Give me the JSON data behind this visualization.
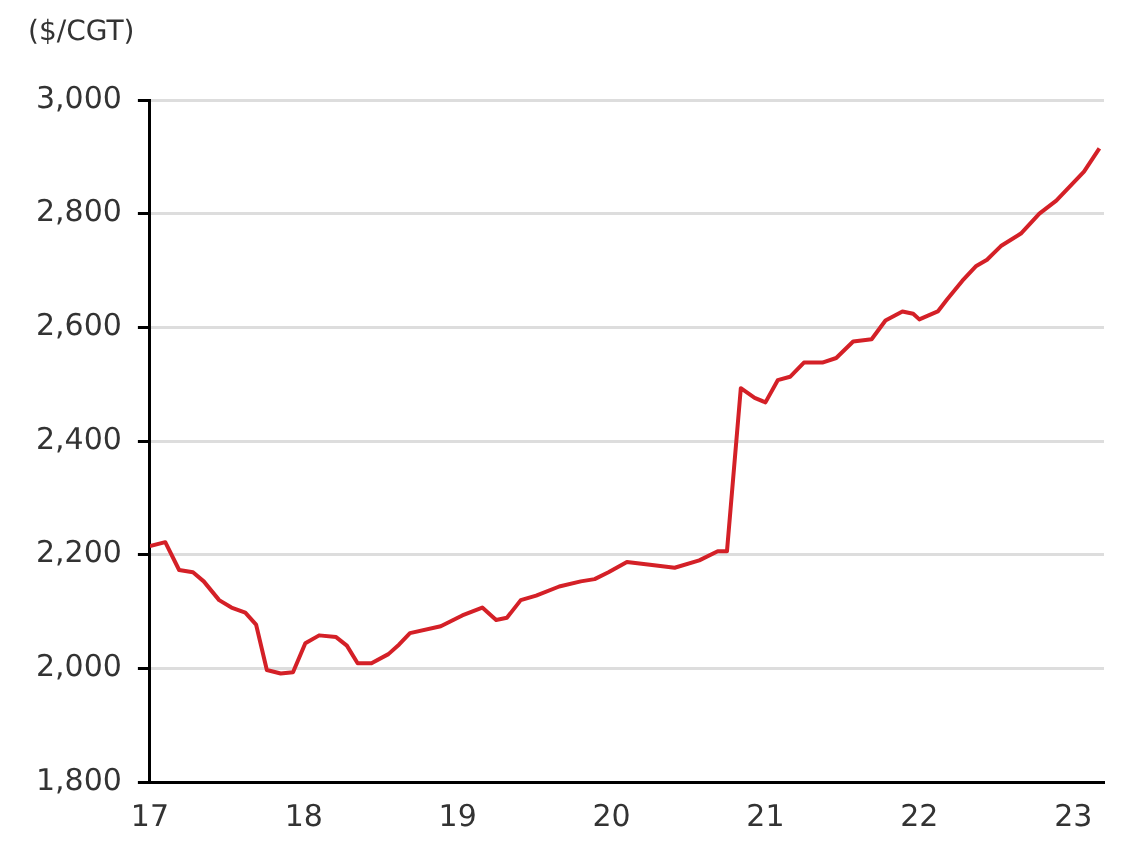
{
  "chart_data": {
    "type": "line",
    "ylabel": "($/CGT)",
    "x": [
      17.0,
      17.1,
      17.19,
      17.28,
      17.35,
      17.45,
      17.53,
      17.62,
      17.69,
      17.76,
      17.85,
      17.93,
      18.01,
      18.1,
      18.21,
      18.28,
      18.35,
      18.44,
      18.55,
      18.62,
      18.69,
      18.89,
      19.03,
      19.16,
      19.25,
      19.32,
      19.41,
      19.51,
      19.66,
      19.8,
      19.89,
      19.98,
      20.1,
      20.29,
      20.41,
      20.57,
      20.69,
      20.75,
      20.84,
      20.93,
      21.0,
      21.08,
      21.16,
      21.25,
      21.37,
      21.46,
      21.57,
      21.69,
      21.78,
      21.89,
      21.96,
      22.0,
      22.12,
      22.18,
      22.28,
      22.37,
      22.44,
      22.53,
      22.66,
      22.78,
      22.89,
      23.07,
      23.17
    ],
    "series": [
      {
        "color": "#d42027",
        "values": [
          2215,
          2222,
          2173,
          2169,
          2153,
          2120,
          2107,
          2098,
          2077,
          1997,
          1991,
          1993,
          2044,
          2058,
          2055,
          2040,
          2009,
          2009,
          2025,
          2042,
          2062,
          2074,
          2093,
          2107,
          2085,
          2089,
          2120,
          2128,
          2144,
          2153,
          2157,
          2169,
          2187,
          2181,
          2177,
          2190,
          2206,
          2206,
          2493,
          2476,
          2468,
          2507,
          2513,
          2538,
          2538,
          2546,
          2575,
          2579,
          2612,
          2628,
          2624,
          2614,
          2628,
          2649,
          2682,
          2708,
          2719,
          2743,
          2765,
          2800,
          2823,
          2874,
          2915
        ]
      }
    ],
    "xlim": [
      17,
      23.2
    ],
    "xticks": [
      17,
      18,
      19,
      20,
      21,
      22,
      23
    ],
    "ylim": [
      1800,
      3000
    ],
    "yticks": [
      {
        "value": 1800,
        "label": "1,800"
      },
      {
        "value": 2000,
        "label": "2,000"
      },
      {
        "value": 2200,
        "label": "2,200"
      },
      {
        "value": 2400,
        "label": "2,400"
      },
      {
        "value": 2600,
        "label": "2,600"
      },
      {
        "value": 2800,
        "label": "2,800"
      },
      {
        "value": 3000,
        "label": "3,000"
      }
    ],
    "grid": "y",
    "legend": false,
    "marker": "none",
    "line_style": "solid"
  }
}
